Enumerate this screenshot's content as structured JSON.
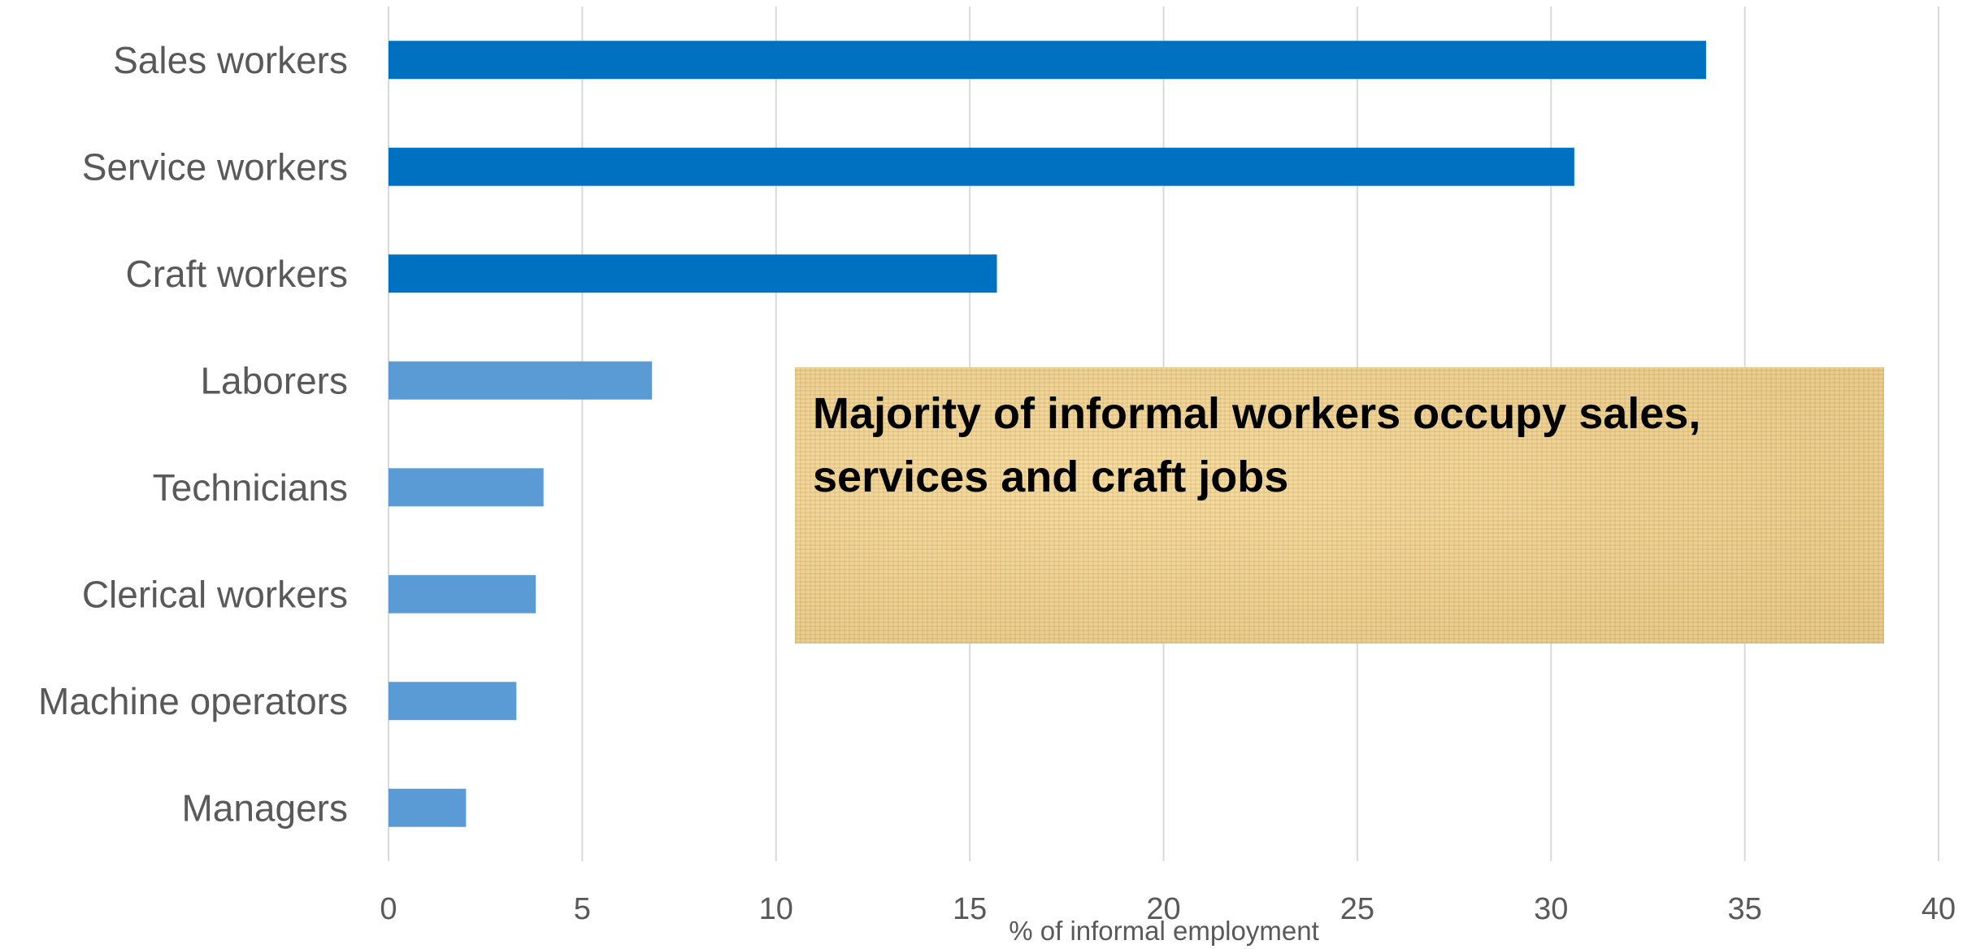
{
  "chart_data": {
    "type": "bar",
    "orientation": "horizontal",
    "categories": [
      "Sales workers",
      "Service workers",
      "Craft workers",
      "Laborers",
      "Technicians",
      "Clerical workers",
      "Machine operators",
      "Managers"
    ],
    "values": [
      34.0,
      30.6,
      15.7,
      6.8,
      4.0,
      3.8,
      3.3,
      2.0
    ],
    "colors": [
      "#0070c0",
      "#0070c0",
      "#0070c0",
      "#5b9bd5",
      "#5b9bd5",
      "#5b9bd5",
      "#5b9bd5",
      "#5b9bd5"
    ],
    "xlabel": "% of informal employment",
    "xlim": [
      0,
      40
    ],
    "xticks": [
      "0",
      "5",
      "10",
      "15",
      "20",
      "25",
      "30",
      "35",
      "40"
    ],
    "grid": "vertical",
    "annotation": "Majority of informal workers occupy sales, services and craft jobs"
  }
}
